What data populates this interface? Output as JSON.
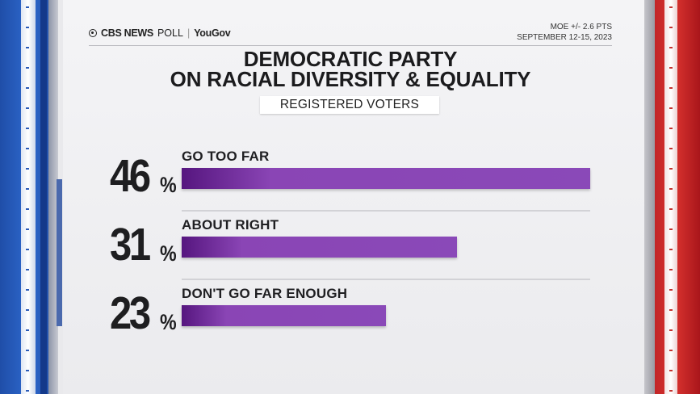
{
  "header": {
    "brand": "CBS NEWS",
    "poll_word": "POLL",
    "partner": "YouGov",
    "moe": "MOE +/- 2.6 PTS",
    "dates": "SEPTEMBER 12-15, 2023"
  },
  "colors": {
    "bar": "#8a49b8",
    "bar_dark": "#56167f",
    "left_panel": "#2f6ad0",
    "right_panel": "#d9332f"
  },
  "icons": [
    "cbs-eye-icon"
  ],
  "chart_data": {
    "type": "bar",
    "orientation": "horizontal",
    "title": "DEMOCRATIC PARTY ON RACIAL DIVERSITY & EQUALITY",
    "title_lines": [
      "DEMOCRATIC PARTY",
      "ON RACIAL DIVERSITY & EQUALITY"
    ],
    "subtitle": "REGISTERED VOTERS",
    "categories": [
      "GO TOO FAR",
      "ABOUT RIGHT",
      "DON'T GO FAR ENOUGH"
    ],
    "values": [
      46,
      31,
      23
    ],
    "value_labels": [
      "46",
      "31",
      "23"
    ],
    "unit": "%",
    "xlim": [
      0,
      46
    ],
    "grid": false,
    "legend": "none"
  }
}
